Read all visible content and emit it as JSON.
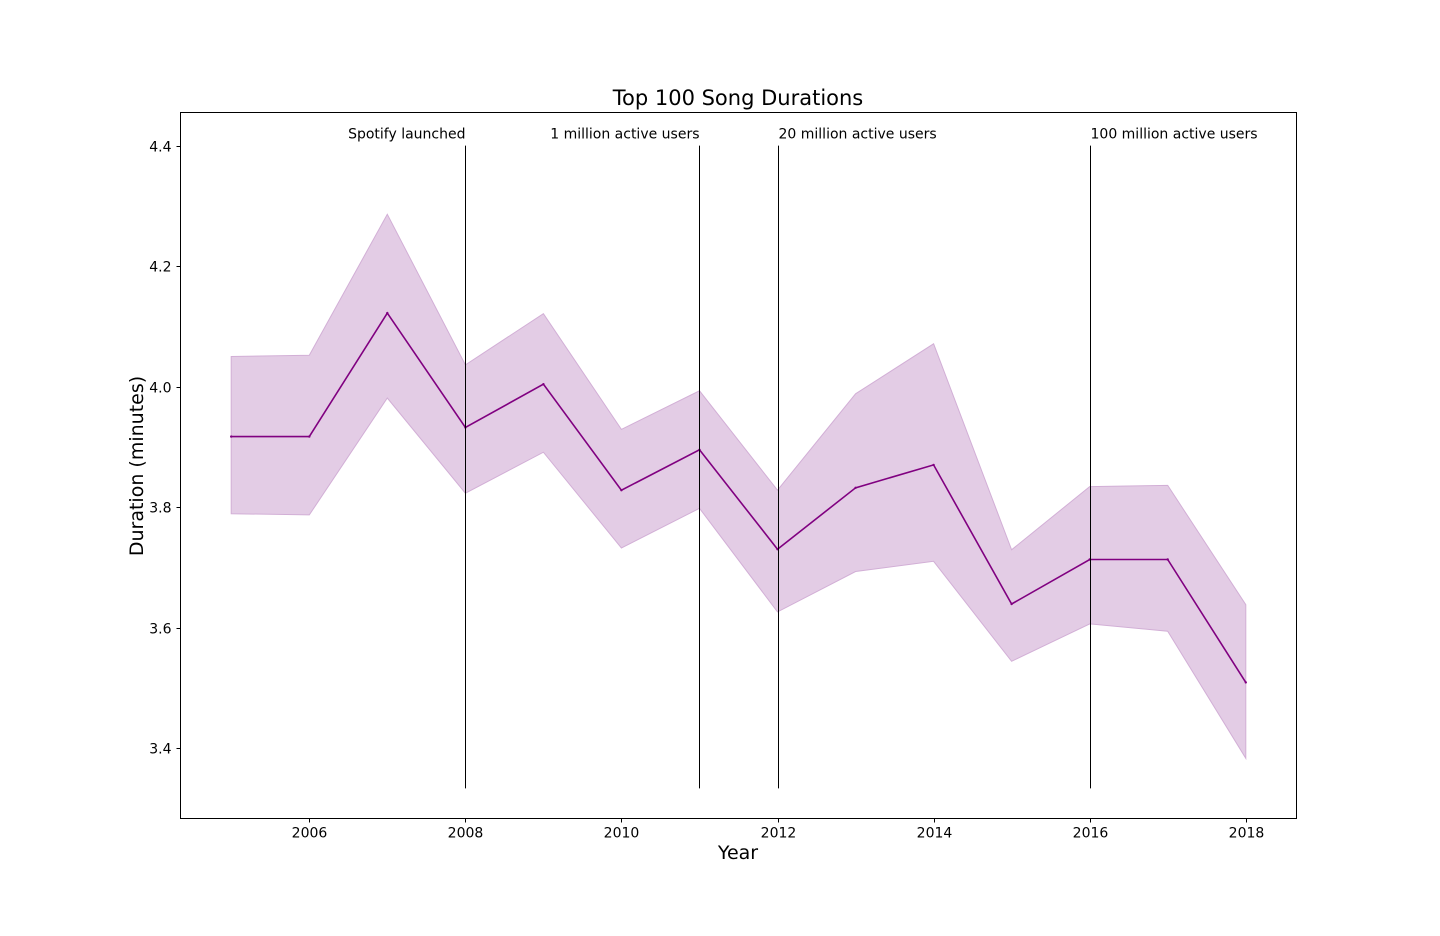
{
  "chart_data": {
    "type": "line",
    "title": "Top 100 Song Durations",
    "xlabel": "Year",
    "ylabel": "Duration (minutes)",
    "xlim": [
      2004.35,
      2018.65
    ],
    "ylim": [
      3.283,
      4.455
    ],
    "xticks": [
      2006,
      2008,
      2010,
      2012,
      2014,
      2016,
      2018
    ],
    "yticks": [
      3.4,
      3.6,
      3.8,
      4.0,
      4.2,
      4.4
    ],
    "grid": false,
    "colors": {
      "line": "#800080",
      "band": "#e3cce5",
      "band_edge": "#d2afd6",
      "vlines": "#000000"
    },
    "series": [
      {
        "x": [
          2005,
          2006,
          2007,
          2008,
          2009,
          2010,
          2011,
          2012,
          2013,
          2014,
          2015,
          2016,
          2017,
          2018
        ],
        "values": [
          3.917,
          3.917,
          4.122,
          3.932,
          4.004,
          3.828,
          3.895,
          3.73,
          3.832,
          3.87,
          3.639,
          3.713,
          3.713,
          3.509
        ],
        "lower": [
          3.789,
          3.787,
          3.981,
          3.823,
          3.891,
          3.732,
          3.798,
          3.626,
          3.693,
          3.71,
          3.544,
          3.606,
          3.594,
          3.383
        ],
        "upper": [
          4.05,
          4.052,
          4.286,
          4.036,
          4.121,
          3.929,
          3.993,
          3.828,
          3.988,
          4.071,
          3.729,
          3.834,
          3.836,
          3.638
        ]
      }
    ],
    "annotations": [
      {
        "x": 2008,
        "text": "Spotify launched",
        "align": "right",
        "y_top": 4.4,
        "y_bottom": 3.333
      },
      {
        "x": 2011,
        "text": "1 million active users",
        "align": "right",
        "y_top": 4.4,
        "y_bottom": 3.333
      },
      {
        "x": 2012,
        "text": "20 million active users",
        "align": "left",
        "y_top": 4.4,
        "y_bottom": 3.333
      },
      {
        "x": 2016,
        "text": "100 million active users",
        "align": "left",
        "y_top": 4.4,
        "y_bottom": 3.333
      }
    ]
  }
}
